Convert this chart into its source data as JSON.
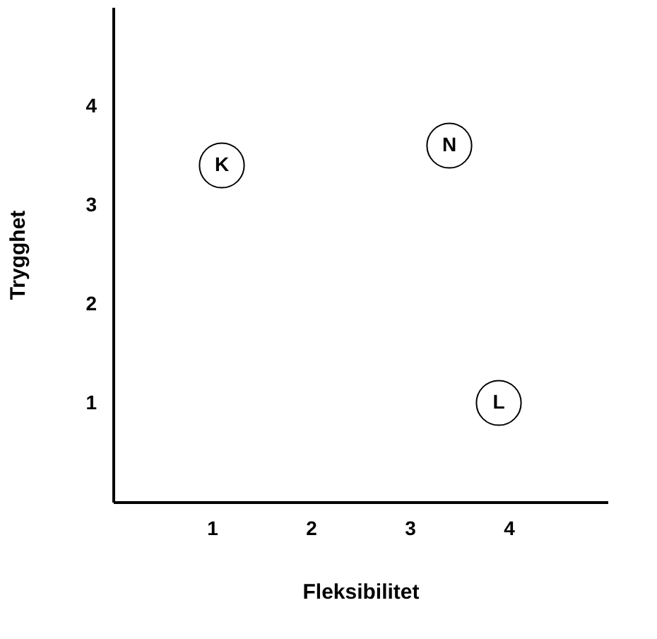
{
  "chart_data": {
    "type": "scatter",
    "xlabel": "Fleksibilitet",
    "ylabel": "Trygghet",
    "x": [
      1.1,
      3.4,
      3.9
    ],
    "values": [
      3.4,
      3.6,
      1.0
    ],
    "color": "#ffffff",
    "marker": "circle",
    "annotations": [
      {
        "text": "K",
        "x": 1.1,
        "y": 3.4
      },
      {
        "text": "N",
        "x": 3.4,
        "y": 3.6
      },
      {
        "text": "L",
        "x": 3.9,
        "y": 1.0
      }
    ],
    "xlim": [
      0,
      5
    ],
    "ylim": [
      0,
      5
    ],
    "xticks": [
      1,
      2,
      3,
      4
    ],
    "yticks": [
      1,
      2,
      3,
      4
    ],
    "grid": false
  }
}
